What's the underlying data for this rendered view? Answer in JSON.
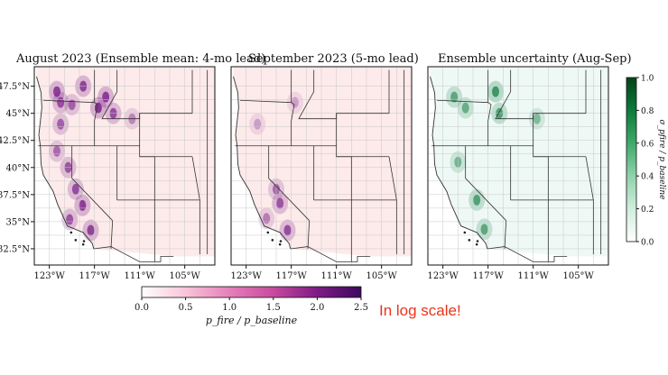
{
  "chart_data": [
    {
      "type": "heatmap",
      "title": "August 2023 (Ensemble mean: 4-mo lead)",
      "xticks": [
        "123°W",
        "117°W",
        "111°W",
        "105°W"
      ],
      "yticks": [
        "47.5°N",
        "45°N",
        "42.5°N",
        "40°N",
        "37.5°N",
        "35°N",
        "32.5°N"
      ],
      "colormap": "pink-purple",
      "hotspots": [
        "Washington/Oregon Cascades",
        "Idaho/Montana Rockies",
        "Sierra Nevada",
        "Southern California"
      ]
    },
    {
      "type": "heatmap",
      "title": "September 2023 (5-mo lead)",
      "xticks": [
        "123°W",
        "117°W",
        "111°W",
        "105°W"
      ],
      "colormap": "pink-purple",
      "hotspots": [
        "Sierra Nevada",
        "Southern California"
      ]
    },
    {
      "type": "heatmap",
      "title": "Ensemble uncertainty (Aug-Sep)",
      "xticks": [
        "123°W",
        "117°W",
        "111°W",
        "105°W"
      ],
      "colormap": "white-green",
      "hotspots": [
        "Cascades",
        "Northern Rockies",
        "Sierra Nevada",
        "Southern California"
      ]
    }
  ],
  "colorbar_main": {
    "label": "p_fire / p_baseline",
    "ticks": [
      "0.0",
      "0.5",
      "1.0",
      "1.5",
      "2.0",
      "2.5"
    ],
    "range": [
      0.0,
      2.5
    ],
    "colors": [
      "#ffffff",
      "#f8c5d8",
      "#e67fba",
      "#c74a9d",
      "#7e1b85",
      "#3d0a5e"
    ]
  },
  "colorbar_unc": {
    "label": "σ_pfire / p_baseline",
    "ticks": [
      "0.0",
      "0.2",
      "0.4",
      "0.6",
      "0.8",
      "1.0"
    ],
    "range": [
      0.0,
      1.0
    ],
    "colors": [
      "#ffffff",
      "#cfeedd",
      "#8fd2ab",
      "#3fa96a",
      "#0e7a3b",
      "#00441b"
    ]
  },
  "annotation": "In log scale!"
}
